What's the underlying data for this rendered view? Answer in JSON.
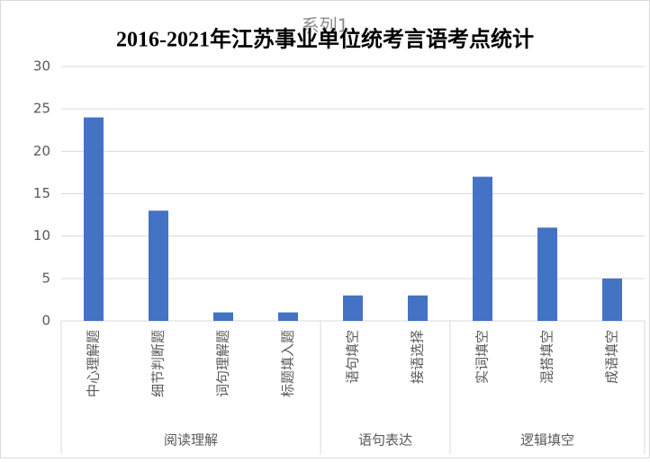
{
  "chart_data": {
    "type": "bar",
    "title": "2016-2021年江苏事业单位统考言语考点统计",
    "groups": [
      {
        "name": "阅读理解",
        "categories": [
          "中心理解题",
          "细节判断题",
          "词句理解题",
          "标题填入题"
        ]
      },
      {
        "name": "语句表达",
        "categories": [
          "语句填空",
          "接语选择"
        ]
      },
      {
        "name": "逻辑填空",
        "categories": [
          "实词填空",
          "混搭填空",
          "成语填空"
        ]
      }
    ],
    "series": [
      {
        "name": "系列1",
        "color": "#4472c4",
        "values": [
          24,
          13,
          1,
          1,
          3,
          3,
          17,
          11,
          5
        ]
      }
    ],
    "ylim": [
      0,
      30
    ],
    "yticks": [
      0,
      5,
      10,
      15,
      20,
      25,
      30
    ],
    "grid": true
  }
}
